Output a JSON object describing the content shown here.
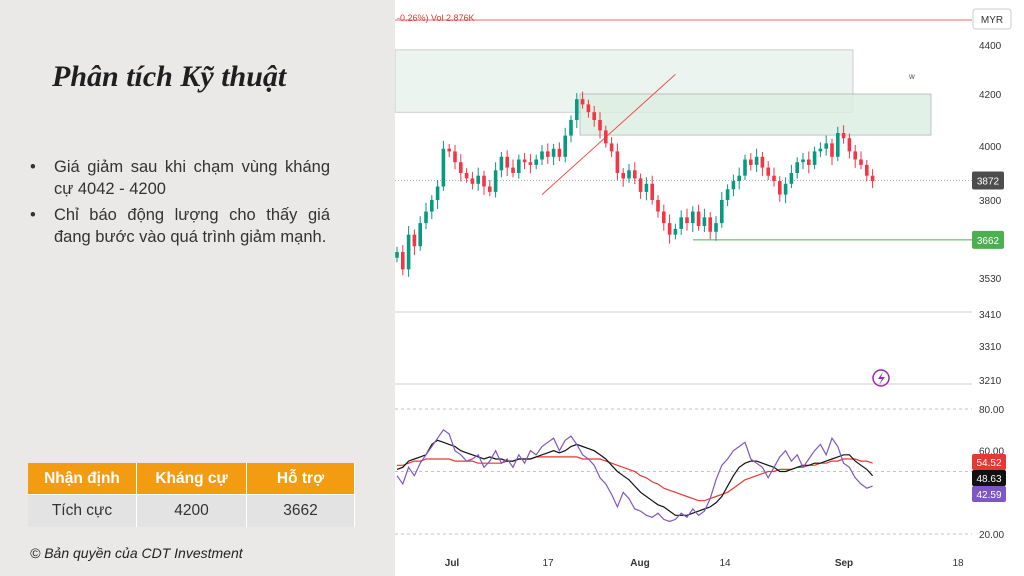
{
  "slide": {
    "title": "Phân tích Kỹ thuật",
    "bullets": [
      "Giá giảm sau khi chạm vùng kháng cự 4042 - 4200",
      "Chỉ báo động lượng cho thấy giá đang bước vào quá trình giảm mạnh."
    ],
    "table": {
      "headers": [
        "Nhận định",
        "Kháng cự",
        "Hỗ trợ"
      ],
      "row": [
        "Tích cực",
        "4200",
        "3662"
      ]
    },
    "copyright": "© Bản quyền của CDT Investment"
  },
  "chart_data": [
    {
      "type": "candlestick",
      "header_text": "-0.26%) Vol 2.876K",
      "currency": "MYR",
      "x_ticks": [
        "Jul",
        "17",
        "Aug",
        "14",
        "Sep",
        "18"
      ],
      "y_ticks": [
        4400,
        4200,
        4000,
        3800,
        3530,
        3410,
        3310,
        3210
      ],
      "ylim": [
        3190,
        4470
      ],
      "current_price": 3872,
      "price_label_color": "#4d4d4d",
      "support": 3662,
      "support_color": "#4caf50",
      "resistance_zone": [
        4042,
        4200
      ],
      "upper_zone": [
        4130,
        4420
      ],
      "zone_marker": "w",
      "candle_up_color": "#089981",
      "candle_down_color": "#f23645",
      "closes": [
        3620,
        3560,
        3680,
        3640,
        3720,
        3760,
        3800,
        3850,
        3990,
        3980,
        3940,
        3900,
        3880,
        3860,
        3890,
        3850,
        3830,
        3910,
        3960,
        3920,
        3900,
        3950,
        3940,
        3930,
        3950,
        3980,
        3960,
        3990,
        3960,
        4040,
        4100,
        4180,
        4160,
        4130,
        4100,
        4060,
        4010,
        3980,
        3900,
        3880,
        3910,
        3880,
        3830,
        3860,
        3800,
        3760,
        3720,
        3680,
        3700,
        3740,
        3720,
        3760,
        3710,
        3740,
        3690,
        3720,
        3800,
        3840,
        3870,
        3890,
        3950,
        3930,
        3960,
        3920,
        3890,
        3870,
        3820,
        3860,
        3900,
        3940,
        3950,
        3930,
        3980,
        3990,
        4010,
        3960,
        4050,
        4030,
        3980,
        3950,
        3930,
        3890,
        3870
      ],
      "trendline": [
        {
          "x": "Jul 19",
          "y": 3820
        },
        {
          "x": "Jul 31",
          "y": 4280
        }
      ]
    },
    {
      "type": "line",
      "name": "momentum",
      "y_ticks": [
        80,
        60,
        20
      ],
      "ylim": [
        17,
        83
      ],
      "dashed_levels": [
        80,
        50,
        20
      ],
      "last_values": [
        54.52,
        48.63,
        42.59
      ],
      "series": [
        {
          "name": "",
          "color": "#e53935",
          "values": [
            53,
            53,
            54,
            55,
            55,
            56,
            56,
            56,
            56,
            56,
            55,
            55,
            55,
            55,
            54,
            54,
            54,
            54,
            54,
            55,
            55,
            56,
            56,
            56,
            57,
            57,
            57,
            57,
            57,
            57,
            57,
            57,
            56,
            56,
            56,
            56,
            55,
            54,
            53,
            52,
            51,
            50,
            48,
            47,
            45,
            44,
            42,
            41,
            40,
            39,
            38,
            37,
            36,
            36,
            37,
            38,
            39,
            40,
            42,
            44,
            46,
            47,
            48,
            49,
            50,
            50,
            51,
            51,
            51,
            52,
            52,
            53,
            53,
            54,
            54,
            55,
            55,
            56,
            56,
            56,
            55,
            55,
            54
          ]
        },
        {
          "name": "",
          "color": "#111111",
          "values": [
            51,
            52,
            55,
            56,
            57,
            58,
            63,
            65,
            64,
            63,
            62,
            60,
            59,
            58,
            57,
            56,
            57,
            56,
            56,
            55,
            55,
            56,
            56,
            56,
            57,
            58,
            59,
            60,
            59,
            60,
            62,
            63,
            62,
            61,
            60,
            58,
            56,
            53,
            50,
            48,
            46,
            43,
            40,
            38,
            36,
            34,
            33,
            31,
            29,
            29,
            29,
            30,
            31,
            32,
            33,
            35,
            38,
            43,
            48,
            52,
            54,
            55,
            55,
            54,
            53,
            52,
            50,
            50,
            51,
            52,
            53,
            53,
            54,
            54,
            55,
            56,
            57,
            58,
            58,
            55,
            53,
            51,
            48
          ]
        },
        {
          "name": "",
          "color": "#7e57c2",
          "values": [
            48,
            44,
            52,
            48,
            54,
            58,
            62,
            66,
            70,
            68,
            60,
            58,
            55,
            56,
            58,
            52,
            55,
            60,
            54,
            56,
            52,
            58,
            54,
            60,
            58,
            62,
            64,
            66,
            60,
            65,
            67,
            63,
            58,
            56,
            53,
            47,
            44,
            39,
            33,
            40,
            37,
            32,
            31,
            29,
            28,
            30,
            27,
            26,
            27,
            30,
            28,
            32,
            29,
            31,
            37,
            46,
            53,
            56,
            60,
            62,
            64,
            56,
            54,
            52,
            47,
            52,
            57,
            60,
            55,
            58,
            52,
            56,
            60,
            63,
            58,
            66,
            62,
            54,
            52,
            47,
            44,
            42,
            43
          ]
        }
      ]
    }
  ]
}
